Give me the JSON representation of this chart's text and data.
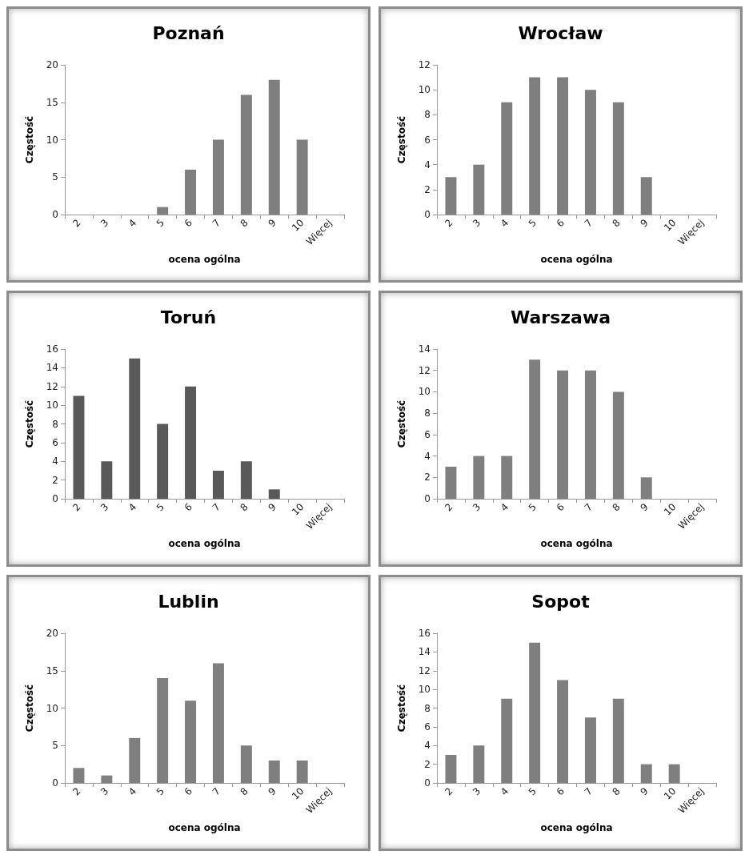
{
  "chart_data": [
    {
      "type": "bar",
      "title": "Poznań",
      "xlabel": "ocena ogólna",
      "ylabel": "Częstość",
      "categories": [
        "2",
        "3",
        "4",
        "5",
        "6",
        "7",
        "8",
        "9",
        "10",
        "Więcej"
      ],
      "values": [
        0,
        0,
        0,
        1,
        6,
        10,
        16,
        18,
        10,
        0
      ],
      "color": "#7f7f7f",
      "ylim": [
        0,
        20
      ],
      "yticks": [
        0,
        5,
        10,
        15,
        20
      ]
    },
    {
      "type": "bar",
      "title": "Wrocław",
      "xlabel": "ocena ogólna",
      "ylabel": "Częstość",
      "categories": [
        "2",
        "3",
        "4",
        "5",
        "6",
        "7",
        "8",
        "9",
        "10",
        "Więcej"
      ],
      "values": [
        3,
        4,
        9,
        11,
        11,
        10,
        9,
        3,
        0,
        0
      ],
      "color": "#7f7f7f",
      "ylim": [
        0,
        12
      ],
      "yticks": [
        0,
        2,
        4,
        6,
        8,
        10,
        12
      ]
    },
    {
      "type": "bar",
      "title": "Toruń",
      "xlabel": "ocena ogólna",
      "ylabel": "Częstość",
      "categories": [
        "2",
        "3",
        "4",
        "5",
        "6",
        "7",
        "8",
        "9",
        "10",
        "Więcej"
      ],
      "values": [
        11,
        4,
        15,
        8,
        12,
        3,
        4,
        1,
        0,
        0
      ],
      "color": "#595959",
      "ylim": [
        0,
        16
      ],
      "yticks": [
        0,
        2,
        4,
        6,
        8,
        10,
        12,
        14,
        16
      ]
    },
    {
      "type": "bar",
      "title": "Warszawa",
      "xlabel": "ocena ogólna",
      "ylabel": "Częstość",
      "categories": [
        "2",
        "3",
        "4",
        "5",
        "6",
        "7",
        "8",
        "9",
        "10",
        "Więcej"
      ],
      "values": [
        3,
        4,
        4,
        13,
        12,
        12,
        10,
        2,
        0,
        0
      ],
      "color": "#7f7f7f",
      "ylim": [
        0,
        14
      ],
      "yticks": [
        0,
        2,
        4,
        6,
        8,
        10,
        12,
        14
      ]
    },
    {
      "type": "bar",
      "title": "Lublin",
      "xlabel": "ocena ogólna",
      "ylabel": "Częstość",
      "categories": [
        "2",
        "3",
        "4",
        "5",
        "6",
        "7",
        "8",
        "9",
        "10",
        "Więcej"
      ],
      "values": [
        2,
        1,
        6,
        14,
        11,
        16,
        5,
        3,
        3,
        0
      ],
      "color": "#7f7f7f",
      "ylim": [
        0,
        20
      ],
      "yticks": [
        0,
        5,
        10,
        15,
        20
      ]
    },
    {
      "type": "bar",
      "title": "Sopot",
      "xlabel": "ocena ogólna",
      "ylabel": "Częstość",
      "categories": [
        "2",
        "3",
        "4",
        "5",
        "6",
        "7",
        "8",
        "9",
        "10",
        "Więcej"
      ],
      "values": [
        3,
        4,
        9,
        15,
        11,
        7,
        9,
        2,
        2,
        0
      ],
      "color": "#7f7f7f",
      "ylim": [
        0,
        16
      ],
      "yticks": [
        0,
        2,
        4,
        6,
        8,
        10,
        12,
        14,
        16
      ]
    }
  ]
}
